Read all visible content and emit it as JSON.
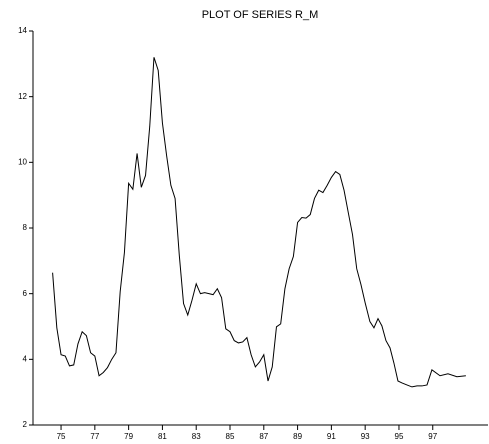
{
  "chart_data": {
    "type": "line",
    "title": "PLOT OF SERIES R_M",
    "x": [
      74.5,
      74.75,
      75,
      75.25,
      75.5,
      75.75,
      76,
      76.25,
      76.5,
      76.75,
      77,
      77.25,
      77.5,
      77.75,
      78,
      78.25,
      78.5,
      78.75,
      79,
      79.25,
      79.5,
      79.75,
      80,
      80.25,
      80.5,
      80.75,
      81,
      81.25,
      81.5,
      81.75,
      82,
      82.25,
      82.5,
      82.75,
      83,
      83.25,
      83.5,
      83.75,
      84,
      84.25,
      84.5,
      84.75,
      85,
      85.25,
      85.5,
      85.75,
      86,
      86.25,
      86.5,
      86.75,
      87,
      87.25,
      87.5,
      87.75,
      88,
      88.25,
      88.5,
      88.75,
      89,
      89.25,
      89.5,
      89.75,
      90,
      90.25,
      90.5,
      90.75,
      91,
      91.25,
      91.5,
      91.75,
      92,
      92.25,
      92.5,
      92.75,
      93,
      93.28,
      93.52,
      93.76,
      93.99,
      94.23,
      94.47,
      94.7,
      94.94,
      95.18,
      95.47,
      95.77,
      96.07,
      96.36,
      96.66,
      96.95,
      97.43,
      97.9,
      98.43,
      98.96
    ],
    "series": [
      {
        "name": "R_M",
        "color": "#000000",
        "values": [
          6.64,
          4.96,
          4.14,
          4.1,
          3.8,
          3.83,
          4.47,
          4.84,
          4.72,
          4.2,
          4.1,
          3.5,
          3.6,
          3.75,
          4.0,
          4.2,
          6.06,
          7.25,
          9.36,
          9.18,
          10.27,
          9.24,
          9.6,
          11.1,
          13.2,
          12.8,
          11.2,
          10.2,
          9.3,
          8.9,
          7.16,
          5.7,
          5.35,
          5.8,
          6.3,
          6.0,
          6.03,
          6.0,
          5.97,
          6.15,
          5.88,
          4.93,
          4.84,
          4.57,
          4.5,
          4.53,
          4.66,
          4.14,
          3.77,
          3.92,
          4.14,
          3.34,
          3.77,
          4.99,
          5.08,
          6.15,
          6.76,
          7.13,
          8.17,
          8.32,
          8.3,
          8.41,
          8.9,
          9.15,
          9.08,
          9.3,
          9.54,
          9.72,
          9.63,
          9.15,
          8.47,
          7.8,
          6.76,
          6.28,
          5.72,
          5.15,
          4.96,
          5.24,
          5.02,
          4.57,
          4.35,
          3.89,
          3.34,
          3.28,
          3.22,
          3.16,
          3.19,
          3.19,
          3.22,
          3.68,
          3.5,
          3.56,
          3.47,
          3.5
        ]
      }
    ],
    "xlim": [
      73.34,
      100.27
    ],
    "ylim": [
      2,
      14
    ],
    "xticks": [
      75,
      77,
      79,
      81,
      83,
      85,
      87,
      89,
      91,
      93,
      95,
      97
    ],
    "yticks": [
      2,
      4,
      6,
      8,
      10,
      12,
      14
    ]
  }
}
